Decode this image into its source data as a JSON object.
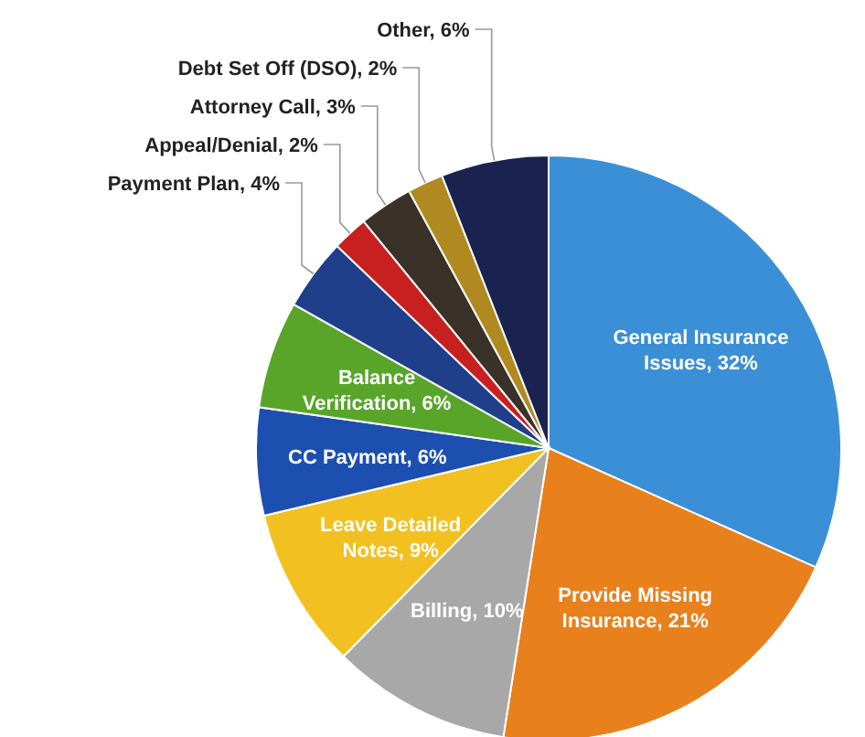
{
  "chart_data": {
    "type": "pie",
    "categories": [
      "General Insurance Issues",
      "Provide Missing Insurance",
      "Billing",
      "Leave Detailed Notes",
      "CC Payment",
      "Balance Verification",
      "Payment Plan",
      "Appeal/Denial",
      "Attorney Call",
      "Debt Set Off (DSO)",
      "Other"
    ],
    "values": [
      32,
      21,
      10,
      9,
      6,
      6,
      4,
      2,
      3,
      2,
      6
    ],
    "colors": [
      "#3a8fd6",
      "#e8801c",
      "#a8a8a8",
      "#f2c020",
      "#1d4fb0",
      "#58a52a",
      "#1f3f8a",
      "#c82020",
      "#3a3228",
      "#b08a20",
      "#1a2250"
    ],
    "value_labels": [
      "32%",
      "21%",
      "10%",
      "9%",
      "6%",
      "6%",
      "4%",
      "2%",
      "3%",
      "2%",
      "6%"
    ]
  }
}
